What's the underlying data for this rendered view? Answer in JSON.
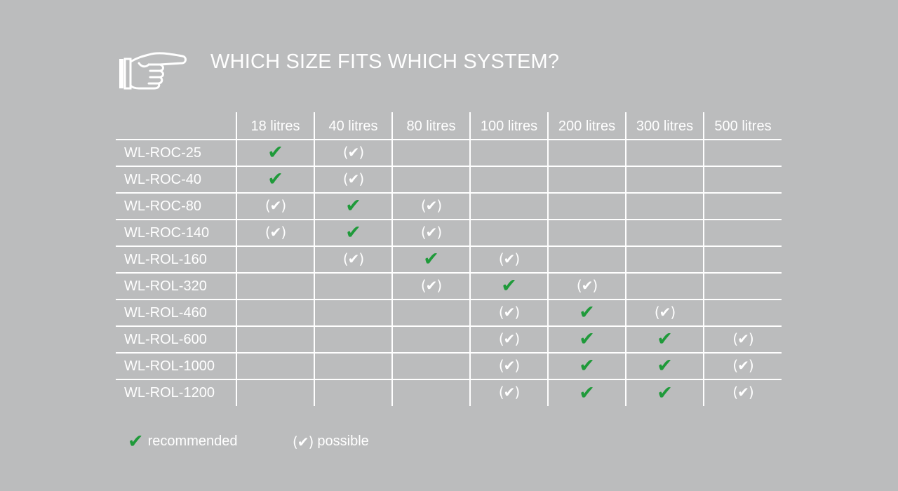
{
  "title": "WHICH SIZE FITS WHICH SYSTEM?",
  "colors": {
    "background": "#bbbcbd",
    "recommended": "#1f9a3a",
    "text": "#ffffff"
  },
  "icons": {
    "header": "pointing-hand-icon",
    "recommended": "check-icon",
    "possible": "check-in-parentheses-icon"
  },
  "columns": [
    "18 litres",
    "40 litres",
    "80 litres",
    "100 litres",
    "200 litres",
    "300 litres",
    "500 litres"
  ],
  "rows": [
    {
      "name": "WL-ROC-25",
      "cells": [
        "R",
        "P",
        "",
        "",
        "",
        "",
        ""
      ]
    },
    {
      "name": "WL-ROC-40",
      "cells": [
        "R",
        "P",
        "",
        "",
        "",
        "",
        ""
      ]
    },
    {
      "name": "WL-ROC-80",
      "cells": [
        "P",
        "R",
        "P",
        "",
        "",
        "",
        ""
      ]
    },
    {
      "name": "WL-ROC-140",
      "cells": [
        "P",
        "R",
        "P",
        "",
        "",
        "",
        ""
      ]
    },
    {
      "name": "WL-ROL-160",
      "cells": [
        "",
        "P",
        "R",
        "P",
        "",
        "",
        ""
      ]
    },
    {
      "name": "WL-ROL-320",
      "cells": [
        "",
        "",
        "P",
        "R",
        "P",
        "",
        ""
      ]
    },
    {
      "name": "WL-ROL-460",
      "cells": [
        "",
        "",
        "",
        "P",
        "R",
        "P",
        ""
      ]
    },
    {
      "name": "WL-ROL-600",
      "cells": [
        "",
        "",
        "",
        "P",
        "R",
        "R",
        "P"
      ]
    },
    {
      "name": "WL-ROL-1000",
      "cells": [
        "",
        "",
        "",
        "P",
        "R",
        "R",
        "P"
      ]
    },
    {
      "name": "WL-ROL-1200",
      "cells": [
        "",
        "",
        "",
        "P",
        "R",
        "R",
        "P"
      ]
    }
  ],
  "marks": {
    "R": "✔",
    "P": "(✔)"
  },
  "legend": {
    "recommended_symbol": "✔",
    "recommended_label": "recommended",
    "possible_symbol": "(✔)",
    "possible_label": "possible"
  }
}
